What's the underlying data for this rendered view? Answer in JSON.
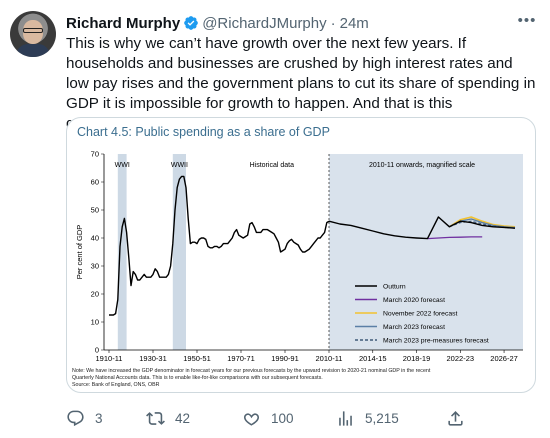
{
  "tweet": {
    "author_name": "Richard Murphy",
    "handle": "@RichardJMurphy",
    "separator": "·",
    "time": "24m",
    "more_label": "•••",
    "text": "This is why we can’t have growth over the next few years. If households and businesses are crushed by high interest rates and low pay rises and the government plans to cut its share of spending in GDP it is impossible for growth to happen. And that is this government’s choice.",
    "accent_color": "#1d9bf0"
  },
  "actions": {
    "reply_count": "3",
    "retweet_count": "42",
    "like_count": "100",
    "views_count": "5,215"
  },
  "icons": {
    "verified": "verified-badge-icon",
    "reply": "reply-icon",
    "retweet": "retweet-icon",
    "like": "heart-icon",
    "views": "bar-chart-icon",
    "share": "share-icon"
  },
  "chart_data": {
    "type": "line",
    "title": "Chart 4.5: Public spending as a share of GDP",
    "title_color": "#3b6e8f",
    "ylabel": "Per cent of GDP",
    "ylim": [
      0,
      70
    ],
    "y_ticks": [
      0,
      10,
      20,
      30,
      40,
      50,
      60,
      70
    ],
    "x_tick_labels": [
      "1910-11",
      "1930-31",
      "1950-51",
      "1970-71",
      "1990-91",
      "2010-11",
      "2014-15",
      "2018-19",
      "2022-23",
      "2026-27"
    ],
    "annotations": {
      "wwi": "WWI",
      "wwii": "WWII",
      "historical": "Historical data",
      "magnified": "2010-11 onwards, magnified scale"
    },
    "legend_placement": "bottom-right",
    "series": [
      {
        "name": "Outturn",
        "color": "#000000",
        "historical": {
          "x": [
            1910,
            1911,
            1912,
            1913,
            1914,
            1915,
            1916,
            1917,
            1918,
            1919,
            1920,
            1921,
            1922,
            1923,
            1924,
            1925,
            1926,
            1927,
            1928,
            1929,
            1930,
            1931,
            1932,
            1933,
            1934,
            1935,
            1936,
            1937,
            1938,
            1939,
            1940,
            1941,
            1942,
            1943,
            1944,
            1945,
            1946,
            1947,
            1948,
            1949,
            1950,
            1951,
            1952,
            1953,
            1954,
            1955,
            1956,
            1957,
            1958,
            1959,
            1960,
            1961,
            1962,
            1963,
            1964,
            1965,
            1966,
            1967,
            1968,
            1969,
            1970,
            1971,
            1972,
            1973,
            1974,
            1975,
            1976,
            1977,
            1978,
            1979,
            1980,
            1981,
            1982,
            1983,
            1984,
            1985,
            1986,
            1987,
            1988,
            1989,
            1990,
            1991,
            1992,
            1993,
            1994,
            1995,
            1996,
            1997,
            1998,
            1999,
            2000,
            2001,
            2002,
            2003,
            2004,
            2005,
            2006,
            2007,
            2008,
            2009,
            2010
          ],
          "y": [
            12.5,
            12.5,
            12.5,
            13,
            18,
            37,
            44,
            47,
            42,
            33,
            23,
            28,
            27,
            25,
            25,
            26,
            27,
            26,
            26,
            26,
            27,
            29,
            28,
            26,
            26,
            26,
            26,
            27,
            30,
            38,
            50,
            58,
            61,
            62,
            62,
            58,
            47,
            38,
            38.5,
            38.5,
            38,
            39.5,
            40,
            40,
            39.5,
            37,
            36.5,
            36.5,
            37,
            37,
            36.5,
            37,
            38,
            38,
            38,
            39,
            40,
            42,
            43,
            41,
            40.5,
            40,
            40.5,
            41,
            45,
            45.5,
            44,
            42,
            42,
            42,
            43,
            43,
            43,
            42.5,
            42,
            41.5,
            40,
            38.5,
            35,
            35.5,
            36,
            38,
            39,
            39.5,
            38.5,
            38,
            37.5,
            36,
            35,
            35,
            35.5,
            36,
            37,
            38,
            39,
            40,
            40,
            41,
            42,
            45.5,
            46
          ]
        },
        "recent": {
          "x": [
            2010,
            2011,
            2012,
            2013,
            2014,
            2015,
            2016,
            2017,
            2018,
            2019,
            2020,
            2021,
            2022,
            2023,
            2024,
            2025,
            2026,
            2027
          ],
          "y": [
            46,
            45,
            44.5,
            43.5,
            42.5,
            41.5,
            40.8,
            40.3,
            40,
            39.8,
            47.5,
            44,
            46,
            45.5,
            44.5,
            44,
            43.8,
            43.5
          ]
        }
      },
      {
        "name": "March 2020 forecast",
        "color": "#7030a0",
        "x": [
          2019,
          2020,
          2021,
          2022,
          2023,
          2024
        ],
        "y": [
          39.8,
          40,
          40.2,
          40.3,
          40.4,
          40.4
        ]
      },
      {
        "name": "November 2022 forecast",
        "color": "#f2c230",
        "x": [
          2021,
          2022,
          2023,
          2024,
          2025,
          2026,
          2027
        ],
        "y": [
          44,
          46.5,
          47.5,
          46,
          44.8,
          44.3,
          44
        ]
      },
      {
        "name": "March 2023 forecast",
        "color": "#5b7fa6",
        "x": [
          2021,
          2022,
          2023,
          2024,
          2025,
          2026,
          2027
        ],
        "y": [
          44,
          46,
          46.8,
          45.5,
          44.5,
          44,
          43.7
        ]
      },
      {
        "name": "March 2023 pre-measures forecast",
        "color": "#3f5a78",
        "x": [
          2021,
          2022,
          2023,
          2024,
          2025,
          2026,
          2027
        ],
        "y": [
          44,
          45.5,
          46,
          45,
          44.2,
          43.8,
          43.5
        ]
      }
    ],
    "shaded_periods": [
      [
        1914,
        1918
      ],
      [
        1939,
        1945
      ]
    ],
    "footnote_1": "Note: We have increased the GDP denominator in forecast years for our previous forecasts by the upward revision to 2020-21 nominal GDP in the recent",
    "footnote_2": "Quarterly National Accounts data. This is to enable like-for-like comparisons with our subsequent forecasts.",
    "source": "Source: Bank of England, ONS, OBR"
  }
}
